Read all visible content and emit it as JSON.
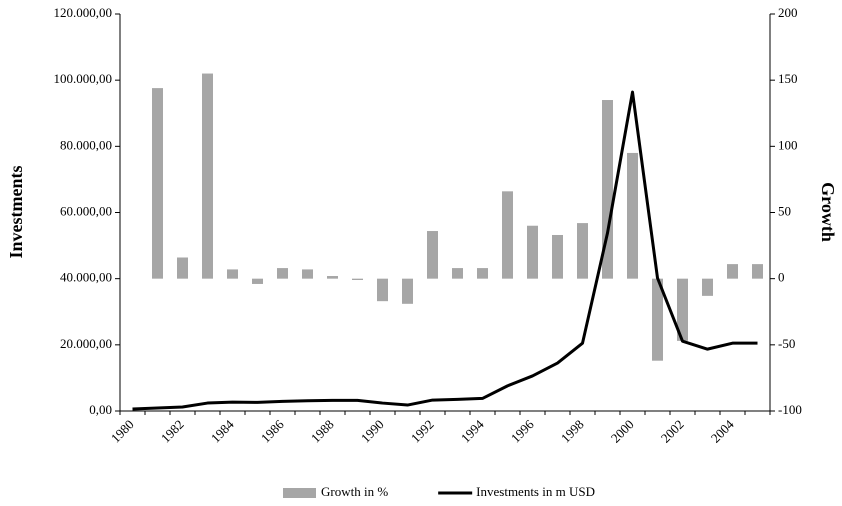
{
  "chart_data": {
    "type": "bar",
    "categories": [
      "1980",
      null,
      "1982",
      null,
      "1984",
      null,
      "1986",
      null,
      "1988",
      null,
      "1990",
      null,
      "1992",
      null,
      "1994",
      null,
      "1996",
      null,
      "1998",
      null,
      "2000",
      null,
      "2002",
      null,
      "2004",
      null
    ],
    "series": [
      {
        "name": "Growth in %",
        "type": "bar",
        "axis": "y2",
        "color": "#a6a6a6",
        "values": [
          null,
          144,
          16,
          155,
          7,
          -4,
          8,
          7,
          2,
          -1,
          -17,
          -19,
          36,
          8,
          8,
          66,
          40,
          33,
          42,
          135,
          95,
          -62,
          -47,
          -13,
          11,
          11
        ]
      },
      {
        "name": "Investments in m USD",
        "type": "line",
        "axis": "y",
        "color": "#000000",
        "values": [
          600,
          900,
          1200,
          2400,
          2700,
          2600,
          2900,
          3100,
          3200,
          3200,
          2400,
          1800,
          3300,
          3500,
          3800,
          7600,
          10600,
          14500,
          20500,
          53800,
          96400,
          40200,
          21100,
          18700,
          20500,
          20500
        ]
      }
    ],
    "ylabel": "Investments",
    "y2label": "Growth",
    "ylim": [
      0,
      120000
    ],
    "yticks": [
      {
        "value": 0,
        "label": "0,00"
      },
      {
        "value": 20000,
        "label": "20.000,00"
      },
      {
        "value": 40000,
        "label": "40.000,00"
      },
      {
        "value": 60000,
        "label": "60.000,00"
      },
      {
        "value": 80000,
        "label": "80.000,00"
      },
      {
        "value": 100000,
        "label": "100.000,00"
      },
      {
        "value": 120000,
        "label": "120.000,00"
      }
    ],
    "y2lim": [
      -100,
      200
    ],
    "y2ticks": [
      -100,
      -50,
      0,
      50,
      100,
      150,
      200
    ],
    "grid": false,
    "legend": "bottom"
  }
}
